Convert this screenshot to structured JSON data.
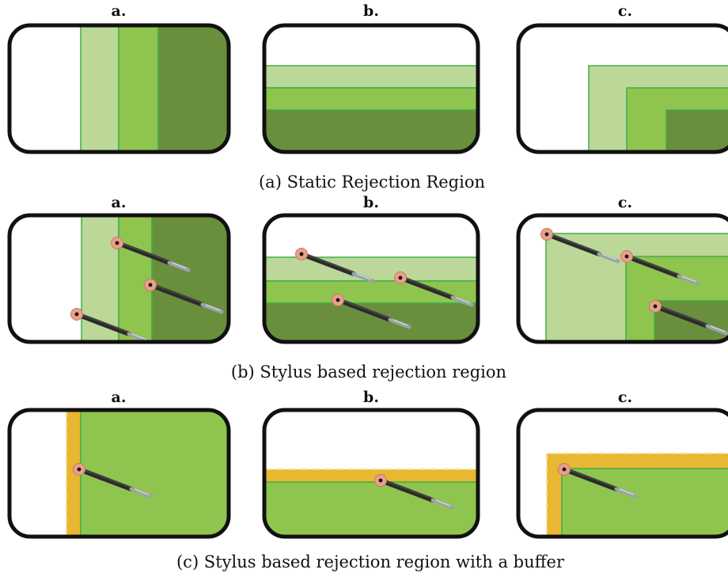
{
  "panel_labels": [
    "a.",
    "b.",
    "c."
  ],
  "captions": {
    "row1": "(a) Static Rejection Region",
    "row2": "(b) Stylus based rejection region",
    "row3": "(c) Stylus based rejection region with a buffer"
  },
  "colors": {
    "light_green": "#bcd898",
    "mid_green": "#8fc54e",
    "dark_green": "#6a8f3c",
    "region_border": "#3fae49",
    "buffer_orange": "#e9b731",
    "frame": "#111111",
    "stylus_tip": "#e8a08a"
  },
  "icons": {
    "stylus": "stylus-pen-icon"
  }
}
